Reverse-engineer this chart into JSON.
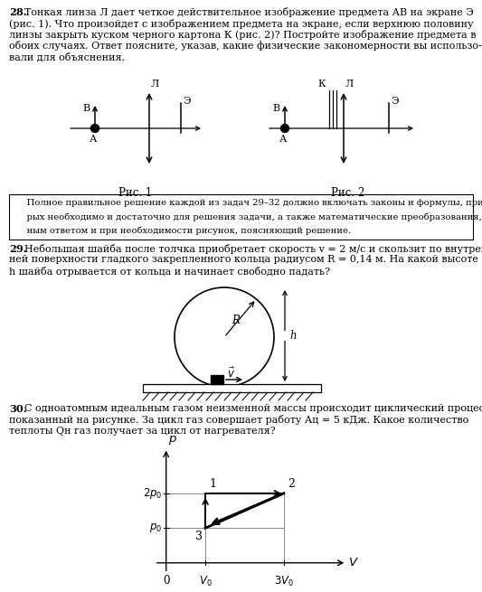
{
  "bg_color": "#ffffff",
  "q28_bold": "28.",
  "q28_rest": " Тонкая линза Л дает четкое действительное изображение предмета АВ на экране Э\n     (рис. 1). Что произойдет с изображением предмета на экране, если верхнюю половину\n     линзы закрыть куском черного картона К (рис. 2)? Постройте изображение предмета в\n     обоих случаях. Ответ поясните, указав, какие физические закономерности вы использо-\n     вали для объяснения.",
  "box_text": "     Полное правильное решение каждой из задач 29–32 должно включать законы и формулы, применение кото-\n     рых необходимо и достаточно для решения задачи, а также математические преобразования, расчеты с числен-\n     ным ответом и при необходимости рисунок, поясняющий решение.",
  "q29_bold": "29.",
  "q29_rest": " Небольшая шайба после толчка приобретает скорость v = 2 м/с и скользит по внутрен-\n     ней поверхности гладкого закрепленного кольца радиусом R = 0,14 м. На какой высоте\n     h шайба отрывается от кольца и начинает свободно падать?",
  "q30_bold": "30.",
  "q30_rest": " С одноатомным идеальным газом неизменной массы происходит циклический процесс,\n     показанный на рисунке. За цикл газ совершает работу Ац = 5 кДж. Какое количество\n     теплоты Qн газ получает за цикл от нагревателя?",
  "ric1_label": "Рис. 1",
  "ric2_label": "Рис. 2"
}
